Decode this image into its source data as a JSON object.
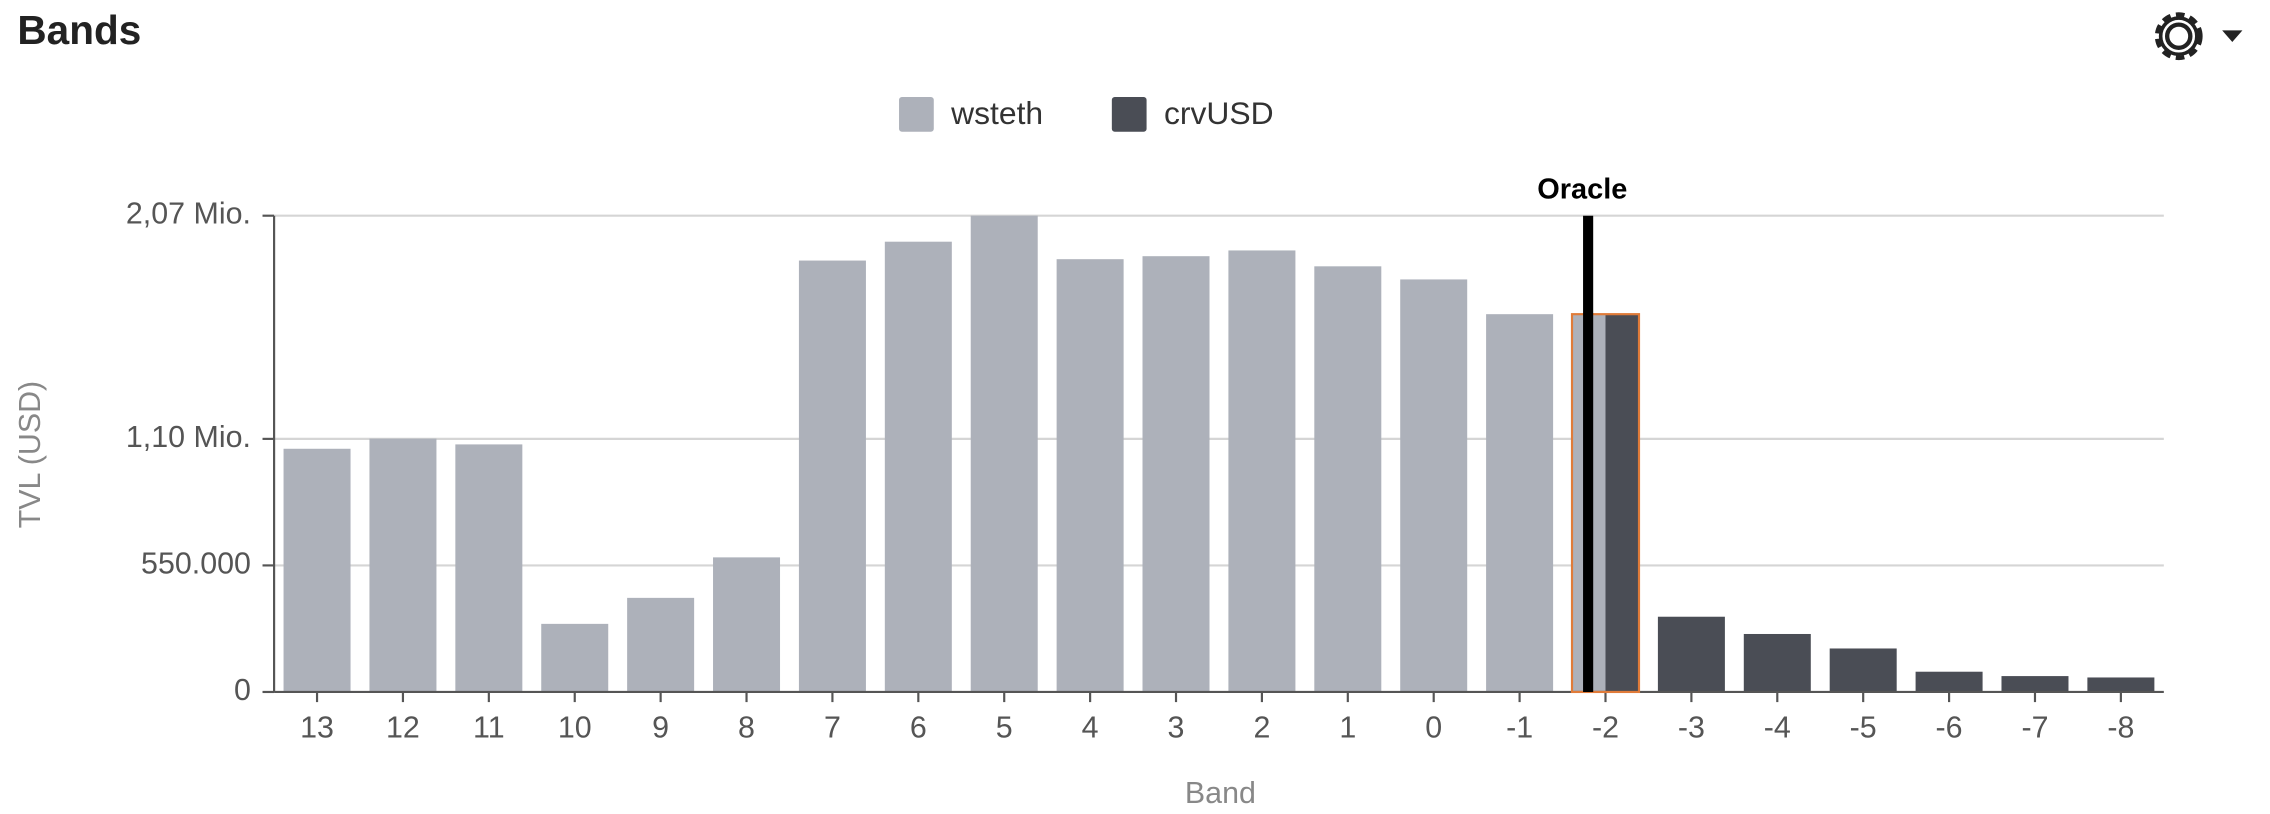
{
  "chart_data": {
    "type": "bar",
    "title": "Bands",
    "x_label": "Band",
    "y_label": "TVL (USD)",
    "categories": [
      "13",
      "12",
      "11",
      "10",
      "9",
      "8",
      "7",
      "6",
      "5",
      "4",
      "3",
      "2",
      "1",
      "0",
      "-1",
      "-2",
      "-3",
      "-4",
      "-5",
      "-6",
      "-7",
      "-8"
    ],
    "series": [
      {
        "name": "wsteth",
        "color": "#adb1ba",
        "values": [
          1057000,
          1101000,
          1076000,
          296000,
          409000,
          585000,
          1875000,
          1957000,
          2070000,
          1881000,
          1894000,
          1919000,
          1850000,
          1793000,
          1642000,
          1642000,
          null,
          null,
          null,
          null,
          null,
          null
        ]
      },
      {
        "name": "crvUSD",
        "color": "#4a4d55",
        "values": [
          null,
          null,
          null,
          null,
          null,
          null,
          null,
          null,
          null,
          null,
          null,
          null,
          null,
          null,
          null,
          1642000,
          327000,
          252000,
          189000,
          88000,
          69000,
          63000
        ]
      }
    ],
    "ylim": [
      0,
      2070000
    ],
    "yticks": [
      0,
      {
        "value": 550000,
        "label": "550.000"
      },
      {
        "value": 1100000,
        "label": "1,10 Mio."
      },
      {
        "value": 2070000,
        "label": "2,07 Mio."
      }
    ],
    "grid": true,
    "oracle": {
      "label": "Oracle",
      "band": "-2",
      "color": "#000000",
      "highlight_color": "#e07b39"
    }
  }
}
